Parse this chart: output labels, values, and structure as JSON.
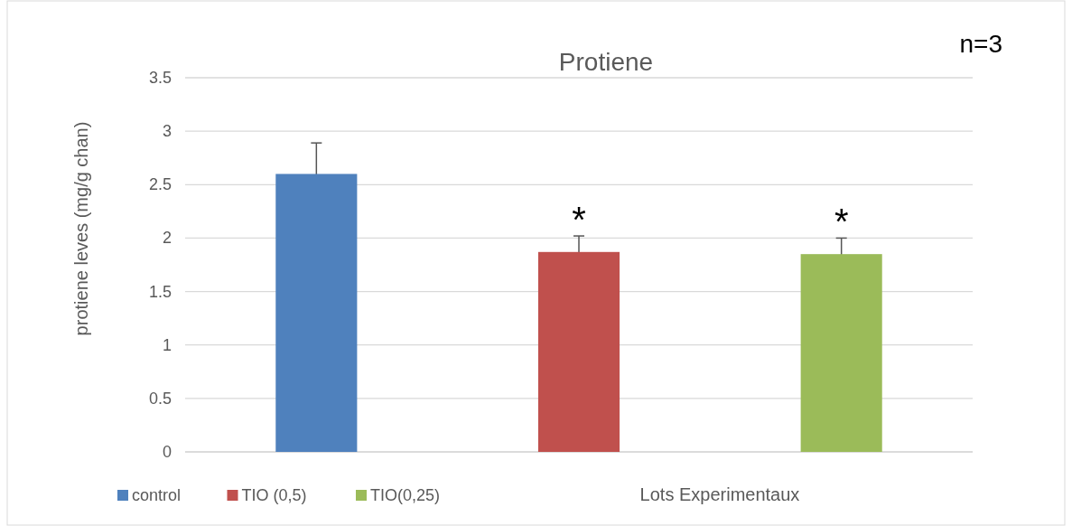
{
  "chart_data": {
    "type": "bar",
    "title": "Protiene",
    "ylabel": "protiene leves (mg/g chan)",
    "xlabel": "Lots Experimentaux",
    "categories": [
      null,
      null,
      null
    ],
    "series": [
      {
        "name": "control",
        "color": "#4f81bd",
        "values": [
          2.6,
          null,
          null
        ],
        "errors": [
          0.29,
          null,
          null
        ]
      },
      {
        "name": "TIO (0,5)",
        "color": "#c0504d",
        "values": [
          null,
          1.87,
          null
        ],
        "errors": [
          null,
          0.15,
          null
        ],
        "value_labels": [
          null,
          "*",
          null
        ]
      },
      {
        "name": "TIO(0,25)",
        "color": "#9bbb59",
        "values": [
          null,
          null,
          1.85
        ],
        "errors": [
          null,
          null,
          0.15
        ],
        "value_labels": [
          null,
          null,
          "*"
        ]
      }
    ],
    "ylim": [
      0,
      3.5
    ],
    "yticks": [
      0,
      0.5,
      1,
      1.5,
      2,
      2.5,
      3,
      3.5
    ],
    "grid": "y",
    "legend": "bottom left",
    "annotations": [
      "n=3"
    ]
  }
}
